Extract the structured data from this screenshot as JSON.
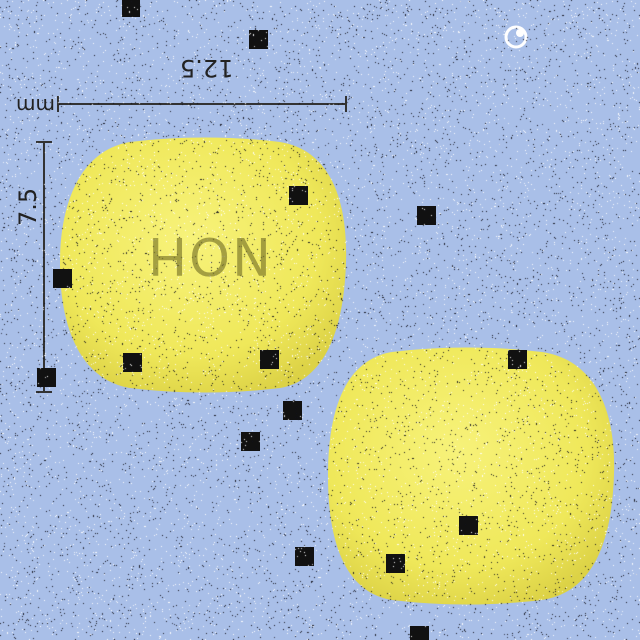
{
  "measurements": {
    "width_label": "12.5",
    "height_label": "7.5",
    "unit_label": "mm"
  },
  "pill": {
    "imprint": "NOH"
  },
  "logo": {
    "line1": "",
    "line2": ""
  },
  "colors": {
    "background": "#a9bfe8",
    "pill": "#f0ea5c",
    "pill_shade": "#e3d94a",
    "marker": "#111111",
    "dimension_line": "#333333"
  },
  "icons": [
    "logo-icon"
  ]
}
